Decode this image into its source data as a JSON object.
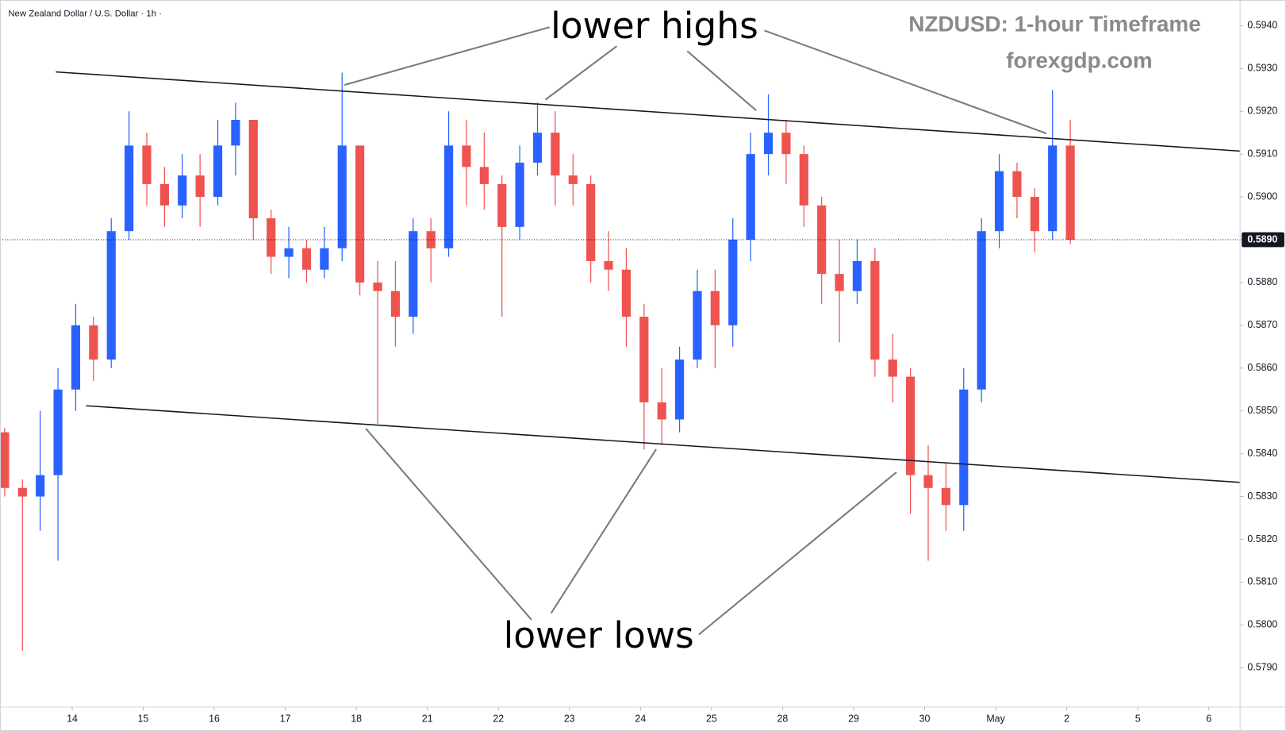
{
  "chart_data": {
    "type": "candlestick",
    "title": "New Zealand Dollar / U.S. Dollar · 1h ·",
    "annotations": [
      "lower highs",
      "lower lows",
      "NZDUSD: 1-hour Timeframe",
      "forexgdp.com"
    ],
    "up_color": "#2962ff",
    "down_color": "#ef5350",
    "xlim": [
      -1.016,
      16.44
    ],
    "ylim": [
      0.57808,
      0.5946
    ],
    "xticks": [
      {
        "value": 0,
        "label": "14"
      },
      {
        "value": 1,
        "label": "15"
      },
      {
        "value": 2,
        "label": "16"
      },
      {
        "value": 3,
        "label": "17"
      },
      {
        "value": 4,
        "label": "18"
      },
      {
        "value": 5,
        "label": "21"
      },
      {
        "value": 6,
        "label": "22"
      },
      {
        "value": 7,
        "label": "23"
      },
      {
        "value": 8,
        "label": "24"
      },
      {
        "value": 9,
        "label": "25"
      },
      {
        "value": 10,
        "label": "28"
      },
      {
        "value": 11,
        "label": "29"
      },
      {
        "value": 12,
        "label": "30"
      },
      {
        "value": 13,
        "label": "May"
      },
      {
        "value": 14,
        "label": "2"
      },
      {
        "value": 15,
        "label": "5"
      },
      {
        "value": 16,
        "label": "6"
      }
    ],
    "yticks": [
      {
        "value": 0.579,
        "label": "0.5790"
      },
      {
        "value": 0.58,
        "label": "0.5800"
      },
      {
        "value": 0.581,
        "label": "0.5810"
      },
      {
        "value": 0.582,
        "label": "0.5820"
      },
      {
        "value": 0.583,
        "label": "0.5830"
      },
      {
        "value": 0.584,
        "label": "0.5840"
      },
      {
        "value": 0.585,
        "label": "0.5850"
      },
      {
        "value": 0.586,
        "label": "0.5860"
      },
      {
        "value": 0.587,
        "label": "0.5870"
      },
      {
        "value": 0.588,
        "label": "0.5880"
      },
      {
        "value": 0.589,
        "label": "0.5890"
      },
      {
        "value": 0.59,
        "label": "0.5900"
      },
      {
        "value": 0.591,
        "label": "0.5910"
      },
      {
        "value": 0.592,
        "label": "0.5920"
      },
      {
        "value": 0.593,
        "label": "0.5930"
      },
      {
        "value": 0.594,
        "label": "0.5940"
      }
    ],
    "price_line": {
      "value": 0.589,
      "label": "0.5890"
    },
    "trend_lines": [
      {
        "x": [
          -0.23,
          16.44
        ],
        "y": [
          0.59292,
          0.59107
        ]
      },
      {
        "x": [
          0.196,
          16.44
        ],
        "y": [
          0.58512,
          0.58333
        ]
      }
    ],
    "x": [
      -0.95,
      -0.7,
      -0.45,
      -0.2,
      0.05,
      0.3,
      0.55,
      0.8,
      1.05,
      1.3,
      1.55,
      1.8,
      2.05,
      2.3,
      2.55,
      2.8,
      3.05,
      3.3,
      3.55,
      3.8,
      4.05,
      4.3,
      4.55,
      4.8,
      5.05,
      5.3,
      5.55,
      5.8,
      6.05,
      6.3,
      6.55,
      6.8,
      7.05,
      7.3,
      7.55,
      7.8,
      8.05,
      8.3,
      8.55,
      8.8,
      9.05,
      9.3,
      9.55,
      9.8,
      10.05,
      10.3,
      10.55,
      10.8,
      11.05,
      11.3,
      11.55,
      11.8,
      12.05,
      12.3,
      12.55,
      12.8,
      13.05,
      13.3,
      13.55,
      13.8,
      14.05
    ],
    "open": [
      0.5845,
      0.5832,
      0.583,
      0.5835,
      0.5855,
      0.587,
      0.5862,
      0.5892,
      0.5912,
      0.5903,
      0.5898,
      0.5905,
      0.59,
      0.5912,
      0.5918,
      0.5895,
      0.5886,
      0.5888,
      0.5883,
      0.5888,
      0.5912,
      0.588,
      0.5878,
      0.5872,
      0.5892,
      0.5888,
      0.5912,
      0.5907,
      0.5903,
      0.5893,
      0.5908,
      0.5915,
      0.5905,
      0.5903,
      0.5885,
      0.5883,
      0.5872,
      0.5852,
      0.5848,
      0.5862,
      0.5878,
      0.587,
      0.589,
      0.591,
      0.5915,
      0.591,
      0.5898,
      0.5882,
      0.5878,
      0.5885,
      0.5862,
      0.5858,
      0.5835,
      0.5832,
      0.5828,
      0.5855,
      0.5892,
      0.5906,
      0.59,
      0.5892,
      0.5912
    ],
    "high": [
      0.5846,
      0.5834,
      0.585,
      0.586,
      0.5875,
      0.5872,
      0.5895,
      0.592,
      0.5915,
      0.5907,
      0.591,
      0.591,
      0.5918,
      0.5922,
      0.5918,
      0.5897,
      0.5893,
      0.589,
      0.5893,
      0.5929,
      0.5912,
      0.5885,
      0.5885,
      0.5895,
      0.5895,
      0.592,
      0.5918,
      0.5915,
      0.5905,
      0.5912,
      0.5922,
      0.592,
      0.591,
      0.5905,
      0.5892,
      0.5888,
      0.5875,
      0.586,
      0.5865,
      0.5883,
      0.5883,
      0.5895,
      0.5915,
      0.5924,
      0.5918,
      0.5912,
      0.59,
      0.589,
      0.589,
      0.5888,
      0.5868,
      0.586,
      0.5842,
      0.5838,
      0.586,
      0.5895,
      0.591,
      0.5908,
      0.5902,
      0.5925,
      0.5918
    ],
    "low": [
      0.583,
      0.5794,
      0.5822,
      0.5815,
      0.585,
      0.5857,
      0.586,
      0.589,
      0.5898,
      0.5893,
      0.5895,
      0.5893,
      0.5898,
      0.5905,
      0.589,
      0.5882,
      0.5881,
      0.588,
      0.5881,
      0.5885,
      0.5877,
      0.5847,
      0.5865,
      0.5868,
      0.588,
      0.5886,
      0.5898,
      0.5897,
      0.5872,
      0.589,
      0.5905,
      0.5898,
      0.5898,
      0.588,
      0.5878,
      0.5865,
      0.5841,
      0.5842,
      0.5845,
      0.586,
      0.586,
      0.5865,
      0.5885,
      0.5905,
      0.5903,
      0.5893,
      0.5875,
      0.5866,
      0.5875,
      0.5858,
      0.5852,
      0.5826,
      0.5815,
      0.5822,
      0.5822,
      0.5852,
      0.5888,
      0.5895,
      0.5887,
      0.589,
      0.5889
    ],
    "close": [
      0.5832,
      0.583,
      0.5835,
      0.5855,
      0.587,
      0.5862,
      0.5892,
      0.5912,
      0.5903,
      0.5898,
      0.5905,
      0.59,
      0.5912,
      0.5918,
      0.5895,
      0.5886,
      0.5888,
      0.5883,
      0.5888,
      0.5912,
      0.588,
      0.5878,
      0.5872,
      0.5892,
      0.5888,
      0.5912,
      0.5907,
      0.5903,
      0.5893,
      0.5908,
      0.5915,
      0.5905,
      0.5903,
      0.5885,
      0.5883,
      0.5872,
      0.5852,
      0.5848,
      0.5862,
      0.5878,
      0.587,
      0.589,
      0.591,
      0.5915,
      0.591,
      0.5898,
      0.5882,
      0.5878,
      0.5885,
      0.5862,
      0.5858,
      0.5835,
      0.5832,
      0.5828,
      0.5855,
      0.5892,
      0.5906,
      0.59,
      0.5892,
      0.5912,
      0.589
    ]
  }
}
